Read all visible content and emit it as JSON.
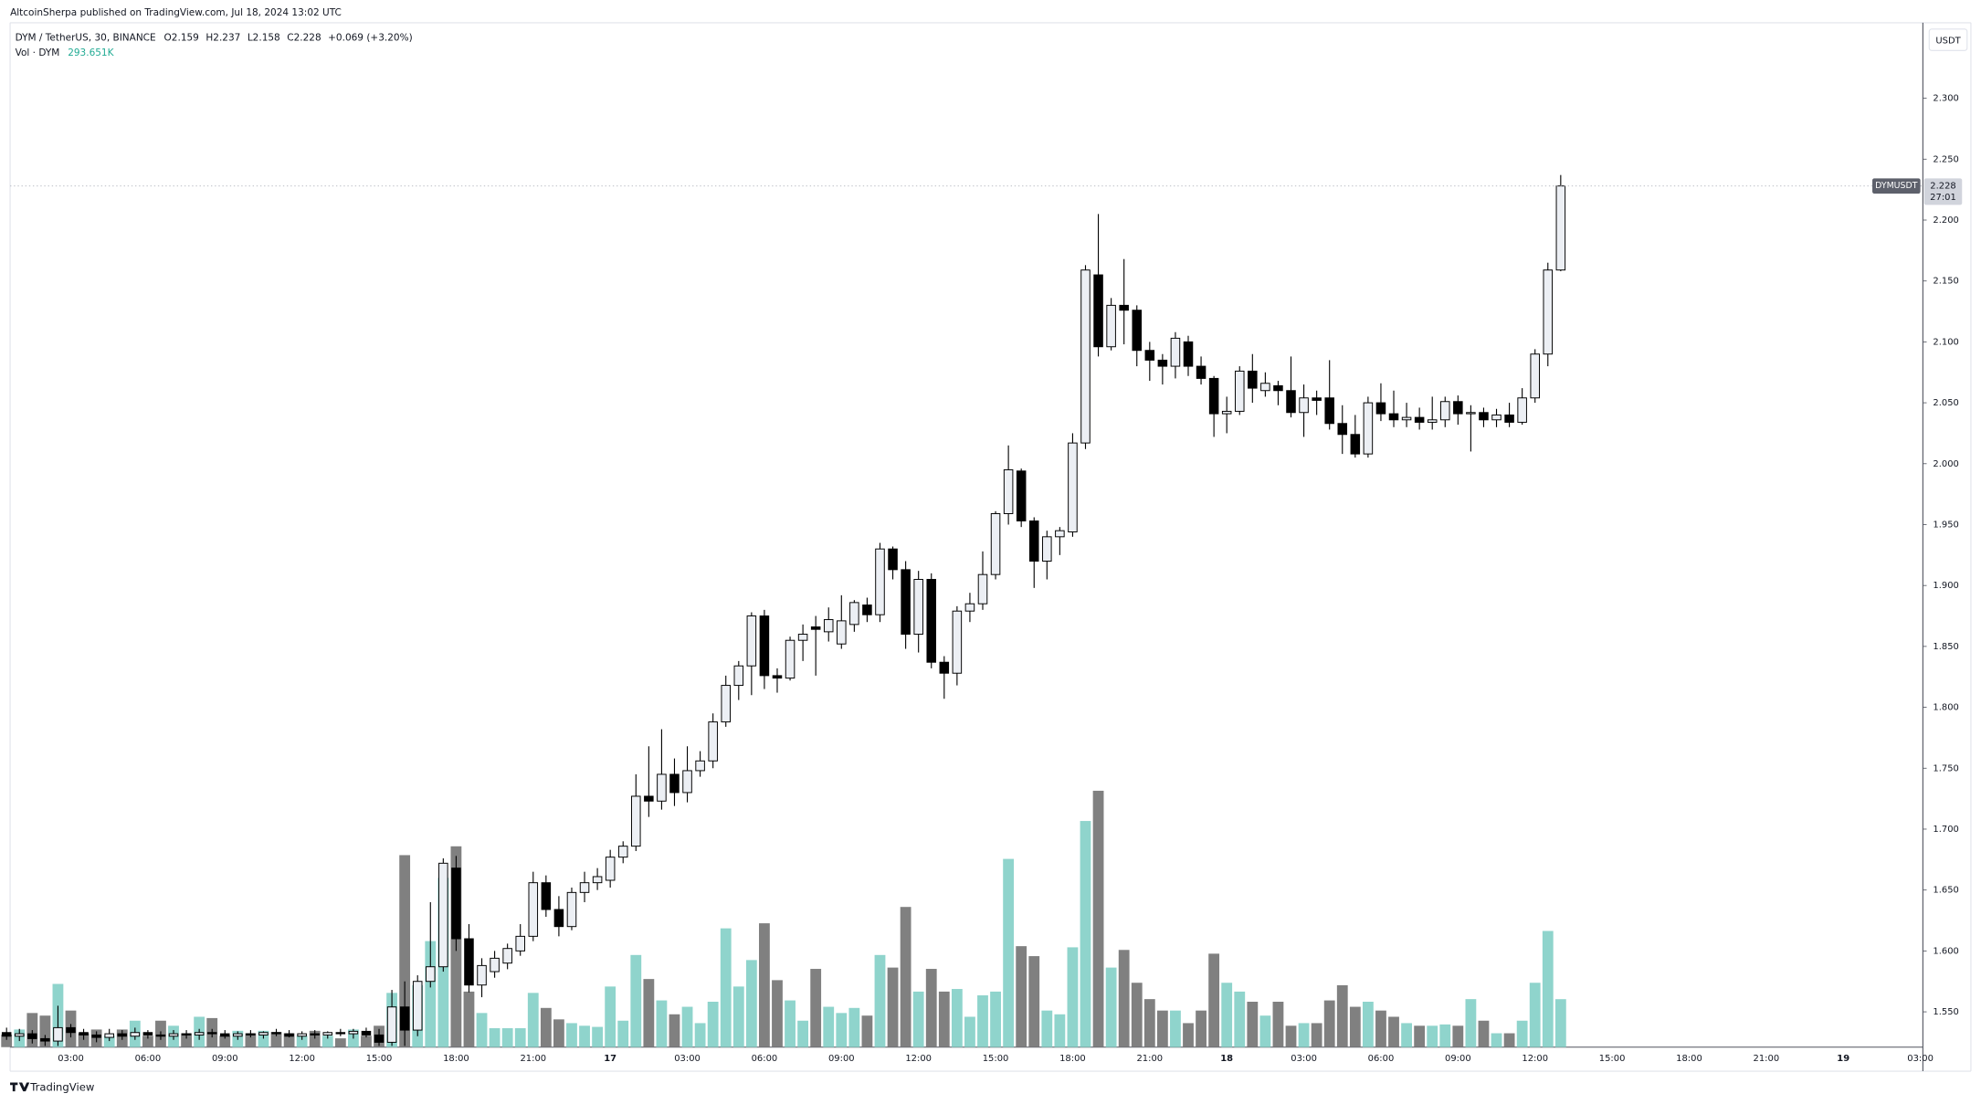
{
  "chart_data": {
    "type": "candlestick",
    "publisher": "AltcoinSherpa published on TradingView.com, Jul 18, 2024 13:02 UTC",
    "symbol": "DYM / TetherUS, 30, BINANCE",
    "ohlc_labels": [
      "O",
      "H",
      "L",
      "C"
    ],
    "change": "+0.069 (+3.20%)",
    "volume_legend": "Vol · DYM",
    "volume_last_label": "293.651K",
    "currency": "USDT",
    "ticker": "DYMUSDT",
    "countdown": "27:01",
    "brand": "TradingView",
    "up_color": "#eceff4",
    "down_color": "#000000",
    "volume_up_color": "#8fd4cc",
    "volume_down_color": "#808080",
    "ylim": [
      1.521,
      2.362
    ],
    "yticks": [
      {
        "value": 1.55,
        "label": "1.550"
      },
      {
        "value": 1.6,
        "label": "1.600"
      },
      {
        "value": 1.65,
        "label": "1.650"
      },
      {
        "value": 1.7,
        "label": "1.700"
      },
      {
        "value": 1.75,
        "label": "1.750"
      },
      {
        "value": 1.8,
        "label": "1.800"
      },
      {
        "value": 1.85,
        "label": "1.850"
      },
      {
        "value": 1.9,
        "label": "1.900"
      },
      {
        "value": 1.95,
        "label": "1.950"
      },
      {
        "value": 2.0,
        "label": "2.000"
      },
      {
        "value": 2.05,
        "label": "2.050"
      },
      {
        "value": 2.1,
        "label": "2.100"
      },
      {
        "value": 2.15,
        "label": "2.150"
      },
      {
        "value": 2.2,
        "label": "2.200"
      },
      {
        "value": 2.25,
        "label": "2.250"
      },
      {
        "value": 2.3,
        "label": "2.300"
      }
    ],
    "volume_ylim": [
      0,
      1600000
    ],
    "categories": [
      null,
      null,
      null,
      null,
      null,
      "03:00",
      null,
      null,
      null,
      null,
      null,
      "06:00",
      null,
      null,
      null,
      null,
      null,
      "09:00",
      null,
      null,
      null,
      null,
      null,
      "12:00",
      null,
      null,
      null,
      null,
      null,
      "15:00",
      null,
      null,
      null,
      null,
      null,
      "18:00",
      null,
      null,
      null,
      null,
      null,
      "21:00",
      null,
      null,
      null,
      null,
      null,
      "17",
      null,
      null,
      null,
      null,
      null,
      "03:00",
      null,
      null,
      null,
      null,
      null,
      "06:00",
      null,
      null,
      null,
      null,
      null,
      "09:00",
      null,
      null,
      null,
      null,
      null,
      "12:00",
      null,
      null,
      null,
      null,
      null,
      "15:00",
      null,
      null,
      null,
      null,
      null,
      "18:00",
      null,
      null,
      null,
      null,
      null,
      "21:00",
      null,
      null,
      null,
      null,
      null,
      "18",
      null,
      null,
      null,
      null,
      null,
      "03:00",
      null,
      null,
      null,
      null,
      null,
      "06:00",
      null,
      null,
      null,
      null,
      null,
      "09:00",
      null,
      null,
      null,
      null,
      null,
      "12:00",
      null,
      null,
      null,
      null,
      null,
      "15:00",
      null,
      null,
      null,
      null,
      null,
      "18:00",
      null,
      null,
      null,
      null,
      null,
      "21:00",
      null,
      null,
      null,
      null,
      null,
      "19",
      null,
      null,
      null,
      null,
      null,
      "03:00"
    ],
    "open": [
      1.533,
      1.53,
      1.532,
      1.528,
      1.526,
      1.537,
      1.533,
      1.531,
      1.529,
      1.532,
      1.53,
      1.533,
      1.531,
      1.53,
      1.532,
      1.531,
      1.533,
      1.532,
      1.53,
      1.532,
      1.531,
      1.533,
      1.532,
      1.53,
      1.532,
      1.531,
      1.533,
      1.532,
      1.534,
      1.531,
      1.525,
      1.554,
      1.535,
      1.575,
      1.587,
      1.668,
      1.61,
      1.572,
      1.583,
      1.59,
      1.6,
      1.612,
      1.656,
      1.634,
      1.62,
      1.648,
      1.656,
      1.658,
      1.677,
      1.686,
      1.727,
      1.723,
      1.745,
      1.73,
      1.748,
      1.756,
      1.788,
      1.818,
      1.834,
      1.875,
      1.826,
      1.824,
      1.855,
      1.866,
      1.862,
      1.852,
      1.868,
      1.884,
      1.876,
      1.93,
      1.913,
      1.86,
      1.905,
      1.837,
      1.828,
      1.879,
      1.885,
      1.909,
      1.959,
      1.994,
      1.953,
      1.92,
      1.94,
      1.944,
      2.017,
      2.155,
      2.096,
      2.13,
      2.126,
      2.093,
      2.085,
      2.08,
      2.1,
      2.08,
      2.07,
      2.041,
      2.043,
      2.076,
      2.06,
      2.064,
      2.06,
      2.042,
      2.054,
      2.054,
      2.033,
      2.024,
      2.008,
      2.05,
      2.041,
      2.036,
      2.038,
      2.034,
      2.036,
      2.051,
      2.041,
      2.042,
      2.036,
      2.04,
      2.034,
      2.054,
      2.09,
      2.159,
      null,
      null,
      null,
      null,
      null,
      null,
      null,
      null,
      null,
      null,
      null,
      null,
      null,
      null,
      null,
      null,
      null,
      null,
      null,
      null,
      null,
      null,
      null,
      null,
      null,
      null,
      null,
      null
    ],
    "high": [
      1.537,
      1.536,
      1.535,
      1.531,
      1.555,
      1.54,
      1.536,
      1.534,
      1.536,
      1.535,
      1.537,
      1.535,
      1.534,
      1.535,
      1.535,
      1.536,
      1.536,
      1.535,
      1.534,
      1.535,
      1.534,
      1.536,
      1.535,
      1.534,
      1.535,
      1.534,
      1.536,
      1.536,
      1.537,
      1.536,
      1.568,
      1.575,
      1.58,
      1.64,
      1.676,
      1.678,
      1.622,
      1.594,
      1.6,
      1.606,
      1.622,
      1.665,
      1.662,
      1.645,
      1.652,
      1.665,
      1.668,
      1.683,
      1.69,
      1.745,
      1.768,
      1.782,
      1.758,
      1.768,
      1.764,
      1.795,
      1.826,
      1.838,
      1.878,
      1.88,
      1.832,
      1.858,
      1.868,
      1.875,
      1.882,
      1.892,
      1.888,
      1.89,
      1.935,
      1.932,
      1.92,
      1.912,
      1.91,
      1.842,
      1.883,
      1.894,
      1.928,
      1.961,
      2.015,
      1.996,
      1.956,
      1.945,
      1.948,
      2.025,
      2.163,
      2.205,
      2.136,
      2.168,
      2.13,
      2.1,
      2.09,
      2.108,
      2.105,
      2.088,
      2.072,
      2.055,
      2.08,
      2.09,
      2.075,
      2.068,
      2.088,
      2.065,
      2.06,
      2.085,
      2.048,
      2.04,
      2.055,
      2.066,
      2.06,
      2.05,
      2.046,
      2.055,
      2.055,
      2.056,
      2.048,
      2.046,
      2.045,
      2.05,
      2.062,
      2.094,
      2.165,
      2.237,
      null,
      null,
      null,
      null,
      null,
      null,
      null,
      null,
      null,
      null,
      null,
      null,
      null,
      null,
      null,
      null,
      null,
      null,
      null,
      null,
      null,
      null,
      null,
      null,
      null,
      null,
      null,
      null
    ],
    "low": [
      1.527,
      1.526,
      1.524,
      1.522,
      1.522,
      1.529,
      1.527,
      1.525,
      1.526,
      1.527,
      1.527,
      1.528,
      1.527,
      1.527,
      1.528,
      1.527,
      1.529,
      1.528,
      1.527,
      1.529,
      1.528,
      1.53,
      1.529,
      1.527,
      1.528,
      1.528,
      1.53,
      1.528,
      1.529,
      1.522,
      1.522,
      1.522,
      1.53,
      1.57,
      1.583,
      1.6,
      1.566,
      1.562,
      1.578,
      1.585,
      1.596,
      1.608,
      1.628,
      1.612,
      1.617,
      1.64,
      1.65,
      1.652,
      1.672,
      1.682,
      1.71,
      1.716,
      1.719,
      1.722,
      1.743,
      1.75,
      1.784,
      1.806,
      1.81,
      1.815,
      1.812,
      1.822,
      1.838,
      1.826,
      1.854,
      1.848,
      1.862,
      1.87,
      1.87,
      1.905,
      1.848,
      1.845,
      1.832,
      1.807,
      1.818,
      1.87,
      1.88,
      1.905,
      1.95,
      1.948,
      1.898,
      1.905,
      1.925,
      1.94,
      2.012,
      2.088,
      2.093,
      2.098,
      2.08,
      2.068,
      2.065,
      2.07,
      2.072,
      2.065,
      2.022,
      2.025,
      2.04,
      2.05,
      2.055,
      2.048,
      2.038,
      2.022,
      2.04,
      2.028,
      2.008,
      2.005,
      2.005,
      2.035,
      2.03,
      2.03,
      2.028,
      2.028,
      2.03,
      2.032,
      2.01,
      2.03,
      2.03,
      2.03,
      2.032,
      2.05,
      2.08,
      2.158,
      null,
      null,
      null,
      null,
      null,
      null,
      null,
      null,
      null,
      null,
      null,
      null,
      null,
      null,
      null,
      null,
      null,
      null,
      null,
      null,
      null,
      null,
      null,
      null,
      null,
      null,
      null,
      null
    ],
    "close": [
      1.53,
      1.532,
      1.528,
      1.526,
      1.537,
      1.533,
      1.531,
      1.529,
      1.532,
      1.53,
      1.533,
      1.531,
      1.53,
      1.532,
      1.531,
      1.533,
      1.532,
      1.53,
      1.532,
      1.531,
      1.533,
      1.532,
      1.53,
      1.532,
      1.531,
      1.533,
      1.532,
      1.534,
      1.531,
      1.525,
      1.554,
      1.535,
      1.575,
      1.587,
      1.672,
      1.61,
      1.572,
      1.588,
      1.594,
      1.602,
      1.612,
      1.656,
      1.634,
      1.62,
      1.648,
      1.656,
      1.661,
      1.677,
      1.686,
      1.727,
      1.723,
      1.745,
      1.73,
      1.748,
      1.756,
      1.788,
      1.818,
      1.834,
      1.875,
      1.826,
      1.824,
      1.855,
      1.86,
      1.864,
      1.872,
      1.871,
      1.886,
      1.876,
      1.93,
      1.913,
      1.86,
      1.905,
      1.837,
      1.828,
      1.879,
      1.885,
      1.909,
      1.959,
      1.995,
      1.953,
      1.92,
      1.94,
      1.945,
      2.017,
      2.159,
      2.096,
      2.13,
      2.126,
      2.093,
      2.085,
      2.08,
      2.103,
      2.08,
      2.07,
      2.041,
      2.043,
      2.076,
      2.062,
      2.066,
      2.06,
      2.042,
      2.054,
      2.052,
      2.033,
      2.024,
      2.008,
      2.05,
      2.041,
      2.036,
      2.038,
      2.034,
      2.036,
      2.051,
      2.041,
      2.042,
      2.036,
      2.04,
      2.034,
      2.054,
      2.09,
      2.159,
      2.228,
      null,
      null,
      null,
      null,
      null,
      null,
      null,
      null,
      null,
      null,
      null,
      null,
      null,
      null,
      null,
      null,
      null,
      null,
      null,
      null,
      null,
      null,
      null,
      null,
      null,
      null,
      null,
      null
    ],
    "volume": [
      77000,
      108000,
      209000,
      193000,
      387000,
      224000,
      85000,
      108000,
      70000,
      108000,
      162000,
      70000,
      162000,
      131000,
      85000,
      186000,
      178000,
      70000,
      100000,
      85000,
      100000,
      93000,
      85000,
      70000,
      100000,
      70000,
      54000,
      108000,
      70000,
      131000,
      332000,
      1175000,
      379000,
      649000,
      1036000,
      1229000,
      340000,
      209000,
      116000,
      116000,
      116000,
      332000,
      240000,
      170000,
      147000,
      131000,
      124000,
      371000,
      162000,
      564000,
      417000,
      286000,
      201000,
      247000,
      147000,
      278000,
      727000,
      371000,
      533000,
      758000,
      410000,
      286000,
      162000,
      479000,
      247000,
      209000,
      240000,
      193000,
      564000,
      487000,
      858000,
      340000,
      479000,
      340000,
      356000,
      186000,
      317000,
      340000,
      1152000,
      618000,
      557000,
      224000,
      201000,
      611000,
      1384000,
      1569000,
      487000,
      595000,
      394000,
      294000,
      224000,
      224000,
      147000,
      224000,
      572000,
      394000,
      340000,
      278000,
      193000,
      278000,
      131000,
      147000,
      147000,
      286000,
      379000,
      247000,
      278000,
      224000,
      186000,
      147000,
      131000,
      131000,
      139000,
      131000,
      294000,
      162000,
      85000,
      85000,
      162000,
      394000,
      711000,
      293651,
      null,
      null,
      null,
      null,
      null,
      null,
      null,
      null,
      null,
      null,
      null,
      null,
      null,
      null,
      null,
      null,
      null,
      null,
      null,
      null,
      null,
      null,
      null,
      null,
      null,
      null,
      null,
      null
    ]
  }
}
